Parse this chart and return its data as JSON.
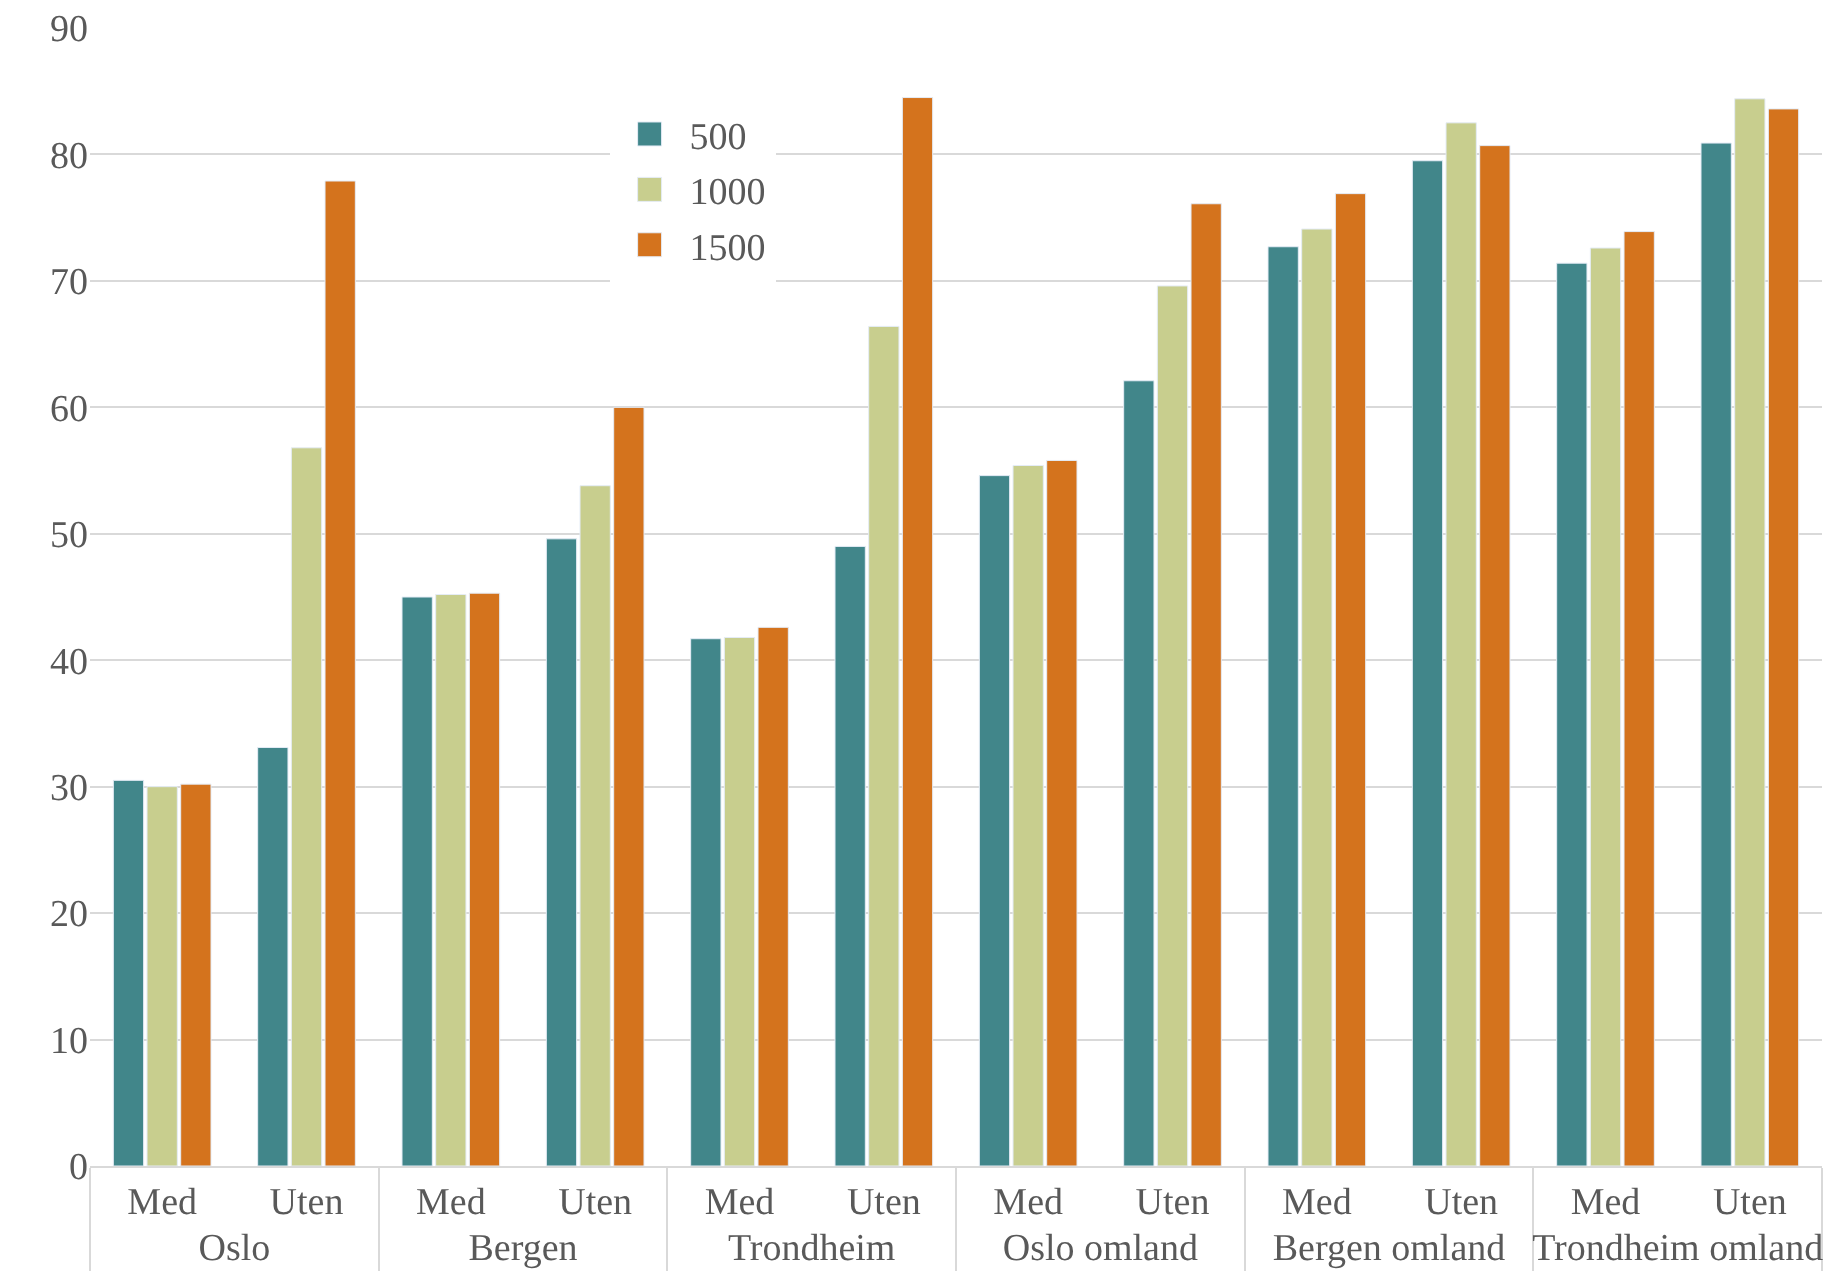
{
  "chart_data": {
    "type": "bar",
    "categories": [
      "Med",
      "Uten",
      "Med",
      "Uten",
      "Med",
      "Uten",
      "Med",
      "Uten",
      "Med",
      "Uten",
      "Med",
      "Uten"
    ],
    "annotations": [
      "Oslo",
      "Bergen",
      "Trondheim",
      "Oslo omland",
      "Bergen omland",
      "Trondheim omland"
    ],
    "series": [
      {
        "name": "500",
        "color": "#41868a",
        "values": [
          30.5,
          33.1,
          45.0,
          49.6,
          41.7,
          49.0,
          54.6,
          62.1,
          72.7,
          79.5,
          71.4,
          80.9
        ]
      },
      {
        "name": "1000",
        "color": "#c8ce8e",
        "values": [
          30.0,
          56.8,
          45.2,
          53.8,
          41.8,
          66.4,
          55.4,
          69.6,
          74.1,
          82.5,
          72.6,
          84.4
        ]
      },
      {
        "name": "1500",
        "color": "#d4731d",
        "values": [
          30.2,
          77.9,
          45.3,
          60.0,
          42.6,
          84.5,
          55.8,
          76.1,
          76.9,
          80.7,
          73.9,
          83.6
        ]
      }
    ],
    "ylim": [
      0,
      90
    ],
    "yticks": [
      0,
      10,
      20,
      30,
      40,
      50,
      60,
      70,
      80,
      90
    ],
    "grid": "y",
    "legend": "top"
  }
}
